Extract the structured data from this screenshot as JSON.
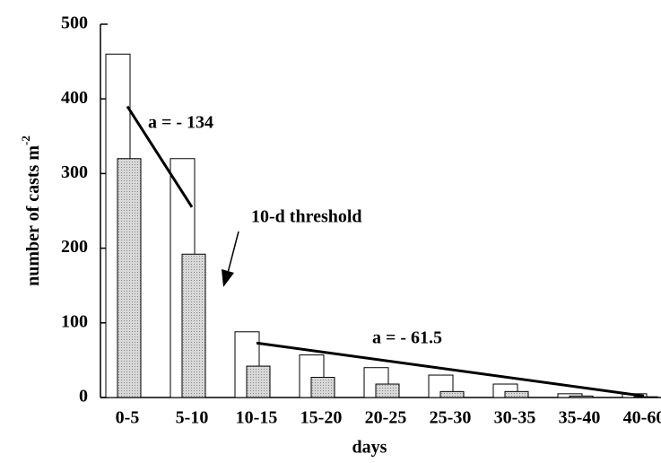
{
  "chart_data": {
    "type": "bar",
    "x_label": "days",
    "y_label": "number of casts m",
    "y_label_superscript": "-2",
    "categories": [
      "0-5",
      "5-10",
      "10-15",
      "15-20",
      "20-25",
      "25-30",
      "30-35",
      "35-40",
      "40-60"
    ],
    "series": [
      {
        "color": "#ffffff",
        "values": [
          460,
          320,
          88,
          57,
          40,
          30,
          18,
          5,
          5
        ]
      },
      {
        "color": "#c8c8c8",
        "values": [
          320,
          192,
          42,
          27,
          18,
          8,
          8,
          2,
          1
        ]
      }
    ],
    "ylim": [
      0,
      500
    ],
    "yticks": [
      0,
      100,
      200,
      300,
      400,
      500
    ],
    "annotations": [
      {
        "text": "a = - 134",
        "x": [
          "0-5",
          "5-10"
        ],
        "y": [
          390,
          255
        ]
      },
      {
        "text": "10-d threshold"
      },
      {
        "text": "a = - 61.5",
        "x": [
          "10-15",
          "40-60"
        ],
        "y": [
          73,
          2
        ]
      }
    ]
  }
}
